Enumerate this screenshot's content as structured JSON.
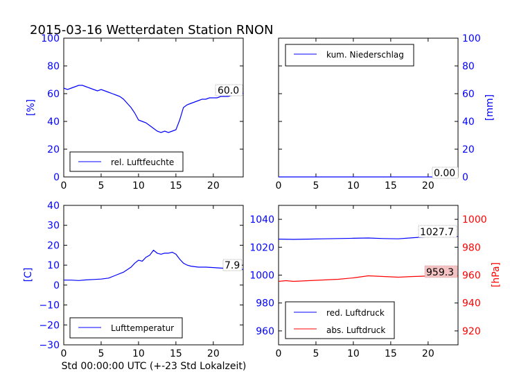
{
  "title": "2015-03-16 Wetterdaten Station RNON",
  "xlabel": "Std 00:00:00 UTC (+-23 Std Lokalzeit)",
  "colors": {
    "blue": "#0000ff",
    "red": "#ff0000",
    "text": "#000000"
  },
  "chart_data": [
    {
      "id": "humidity",
      "type": "line",
      "ylabel": "[%]",
      "xlim": [
        0,
        24
      ],
      "ylim": [
        0,
        100
      ],
      "xticks": [
        "0",
        "5",
        "10",
        "15",
        "20"
      ],
      "yticks": [
        "0",
        "20",
        "40",
        "60",
        "80",
        "100"
      ],
      "legend": "lower-left",
      "last_value_label": "60.0",
      "series": [
        {
          "name": "rel. Luftfeuchte",
          "color": "#0000ff",
          "x": [
            0,
            0.5,
            1,
            1.5,
            2,
            2.5,
            3,
            3.5,
            4,
            4.5,
            5,
            5.5,
            6,
            6.5,
            7,
            7.5,
            8,
            8.5,
            9,
            9.5,
            10,
            10.5,
            11,
            11.5,
            12,
            12.5,
            13,
            13.5,
            14,
            14.5,
            15,
            15.5,
            16,
            16.5,
            17,
            17.5,
            18,
            18.5,
            19,
            19.5,
            20,
            20.5,
            21,
            21.5,
            22,
            22.5,
            23,
            23.5,
            24
          ],
          "values": [
            64,
            63,
            64,
            65,
            66,
            66,
            65,
            64,
            63,
            62,
            63,
            62,
            61,
            60,
            59,
            58,
            56,
            53,
            50,
            46,
            41,
            40,
            39,
            37,
            35,
            33,
            32,
            33,
            32,
            33,
            34,
            41,
            50,
            52,
            53,
            54,
            55,
            56,
            56,
            57,
            57,
            57,
            58,
            58,
            58,
            59,
            59,
            60,
            60
          ]
        }
      ]
    },
    {
      "id": "precipitation",
      "type": "line",
      "ylabel": "[mm]",
      "xlim": [
        0,
        24
      ],
      "ylim": [
        0,
        100
      ],
      "xticks": [
        "0",
        "5",
        "10",
        "15",
        "20"
      ],
      "yticks": [
        "0",
        "20",
        "40",
        "60",
        "80",
        "100"
      ],
      "legend": "upper-left",
      "last_value_label": "0.00",
      "series": [
        {
          "name": "kum. Niederschlag",
          "color": "#0000ff",
          "x": [
            0,
            24
          ],
          "values": [
            0,
            0
          ]
        }
      ]
    },
    {
      "id": "temperature",
      "type": "line",
      "ylabel": "[C]",
      "xlim": [
        0,
        24
      ],
      "ylim": [
        -30,
        40
      ],
      "xticks": [
        "0",
        "5",
        "10",
        "15",
        "20"
      ],
      "yticks": [
        "−30",
        "−20",
        "−10",
        "0",
        "10",
        "20",
        "30",
        "40"
      ],
      "legend": "lower-left",
      "last_value_label": "7.9",
      "series": [
        {
          "name": "Lufttemperatur",
          "color": "#0000ff",
          "x": [
            0,
            1,
            2,
            3,
            4,
            5,
            6,
            7,
            8,
            9,
            9.5,
            10,
            10.5,
            11,
            11.5,
            12,
            12.5,
            13,
            13.5,
            14,
            14.5,
            15,
            15.5,
            16,
            16.5,
            17,
            18,
            19,
            20,
            21,
            22,
            23,
            24
          ],
          "values": [
            2.5,
            2.5,
            2.3,
            2.6,
            2.8,
            3.0,
            3.5,
            5.0,
            6.5,
            9.0,
            11.0,
            12.5,
            12.0,
            14.0,
            15.0,
            17.5,
            16.0,
            15.5,
            16.0,
            16.0,
            16.5,
            15.5,
            13.0,
            11.0,
            10.0,
            9.5,
            9.0,
            9.0,
            8.8,
            8.5,
            8.3,
            8.0,
            7.9
          ]
        }
      ]
    },
    {
      "id": "pressure",
      "type": "line",
      "xlim": [
        0,
        24
      ],
      "ylim": [
        950,
        1050
      ],
      "ylim_right": [
        910,
        1010
      ],
      "ylabel_right": "[hPa]",
      "xticks": [
        "0",
        "5",
        "10",
        "15",
        "20"
      ],
      "yticks": [
        "960",
        "980",
        "1000",
        "1020",
        "1040"
      ],
      "yticks_right": [
        "920",
        "940",
        "960",
        "980",
        "1000"
      ],
      "legend": "lower-left",
      "series": [
        {
          "name": "red. Luftdruck",
          "color": "#0000ff",
          "axis": "left",
          "last_value_label": "1027.7",
          "x": [
            0,
            2,
            4,
            6,
            8,
            10,
            12,
            14,
            16,
            18,
            20,
            22,
            24
          ],
          "values": [
            1025.8,
            1025.6,
            1025.8,
            1026.0,
            1026.2,
            1026.4,
            1026.6,
            1026.2,
            1026.0,
            1026.8,
            1027.5,
            1027.8,
            1027.7
          ]
        },
        {
          "name": "abs. Luftdruck",
          "color": "#ff0000",
          "axis": "right",
          "last_value_label": "959.3",
          "x": [
            0,
            1,
            2,
            4,
            6,
            8,
            10,
            12,
            14,
            16,
            18,
            20,
            22,
            24
          ],
          "values": [
            955.5,
            956.0,
            955.5,
            956.0,
            956.5,
            957.0,
            958.0,
            959.5,
            959.0,
            958.5,
            959.0,
            959.3,
            959.5,
            959.3
          ]
        }
      ]
    }
  ]
}
